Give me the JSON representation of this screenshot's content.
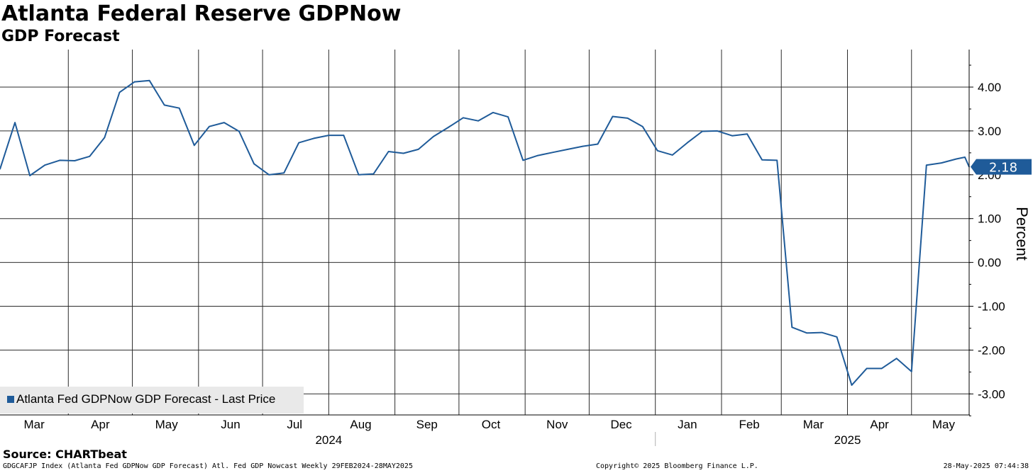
{
  "header": {
    "title": "Atlanta Federal Reserve GDPNow",
    "subtitle": "GDP Forecast"
  },
  "legend": {
    "label": "Atlanta Fed GDPNow GDP Forecast - Last Price"
  },
  "last_price_tag": "2.18",
  "footer": {
    "source": "Source: CHARTbeat",
    "index_info": "GDGCAFJP Index (Atlanta Fed GDPNow GDP Forecast) Atl. Fed GDP Nowcast  Weekly 29FEB2024-28MAY2025",
    "copyright": "Copyright© 2025 Bloomberg Finance L.P.",
    "timestamp": "28-May-2025 07:44:38"
  },
  "chart_data": {
    "type": "line",
    "title": "Atlanta Federal Reserve GDPNow",
    "subtitle": "GDP Forecast",
    "ylabel": "Percent",
    "ylim": [
      -3.5,
      4.8
    ],
    "yticks": [
      "4.00",
      "3.00",
      "2.00",
      "1.00",
      "0.00",
      "-1.00",
      "-2.00",
      "-3.00"
    ],
    "ytick_values": [
      4,
      3,
      2,
      1,
      0,
      -1,
      -2,
      -3
    ],
    "xlim": [
      "2024-02-29",
      "2025-05-28"
    ],
    "grid": true,
    "legend_position": "bottom-left",
    "month_labels": [
      {
        "label": "Mar",
        "date": "2024-03-16"
      },
      {
        "label": "Apr",
        "date": "2024-04-16"
      },
      {
        "label": "May",
        "date": "2024-05-17"
      },
      {
        "label": "Jun",
        "date": "2024-06-16"
      },
      {
        "label": "Jul",
        "date": "2024-07-16"
      },
      {
        "label": "Aug",
        "date": "2024-08-16"
      },
      {
        "label": "Sep",
        "date": "2024-09-16"
      },
      {
        "label": "Oct",
        "date": "2024-10-16"
      },
      {
        "label": "Nov",
        "date": "2024-11-16"
      },
      {
        "label": "Dec",
        "date": "2024-12-16"
      },
      {
        "label": "Jan",
        "date": "2025-01-16"
      },
      {
        "label": "Feb",
        "date": "2025-02-14"
      },
      {
        "label": "Mar",
        "date": "2025-03-16"
      },
      {
        "label": "Apr",
        "date": "2025-04-16"
      },
      {
        "label": "May",
        "date": "2025-05-16"
      }
    ],
    "month_boundaries": [
      "2024-04-01",
      "2024-05-01",
      "2024-06-01",
      "2024-07-01",
      "2024-08-01",
      "2024-09-01",
      "2024-10-01",
      "2024-11-01",
      "2024-12-01",
      "2025-01-01",
      "2025-02-01",
      "2025-03-01",
      "2025-04-01",
      "2025-05-01"
    ],
    "year_labels": [
      {
        "label": "2024",
        "date": "2024-08-01"
      },
      {
        "label": "2025",
        "date": "2025-04-01"
      }
    ],
    "year_divider": "2025-01-01",
    "series": [
      {
        "name": "Atlanta Fed GDPNow GDP Forecast - Last Price",
        "color": "#1f5b99",
        "points": [
          [
            "2024-02-29",
            2.13
          ],
          [
            "2024-03-07",
            3.19
          ],
          [
            "2024-03-14",
            1.98
          ],
          [
            "2024-03-21",
            2.22
          ],
          [
            "2024-03-28",
            2.33
          ],
          [
            "2024-04-04",
            2.32
          ],
          [
            "2024-04-11",
            2.42
          ],
          [
            "2024-04-18",
            2.85
          ],
          [
            "2024-04-25",
            3.88
          ],
          [
            "2024-05-02",
            4.12
          ],
          [
            "2024-05-09",
            4.15
          ],
          [
            "2024-05-16",
            3.59
          ],
          [
            "2024-05-23",
            3.52
          ],
          [
            "2024-05-30",
            2.67
          ],
          [
            "2024-06-06",
            3.1
          ],
          [
            "2024-06-13",
            3.19
          ],
          [
            "2024-06-20",
            2.99
          ],
          [
            "2024-06-27",
            2.25
          ],
          [
            "2024-07-04",
            2.0
          ],
          [
            "2024-07-11",
            2.04
          ],
          [
            "2024-07-18",
            2.73
          ],
          [
            "2024-07-25",
            2.83
          ],
          [
            "2024-08-01",
            2.9
          ],
          [
            "2024-08-08",
            2.9
          ],
          [
            "2024-08-15",
            2.0
          ],
          [
            "2024-08-22",
            2.02
          ],
          [
            "2024-08-29",
            2.53
          ],
          [
            "2024-09-05",
            2.49
          ],
          [
            "2024-09-12",
            2.58
          ],
          [
            "2024-09-19",
            2.87
          ],
          [
            "2024-09-26",
            3.08
          ],
          [
            "2024-10-03",
            3.3
          ],
          [
            "2024-10-10",
            3.23
          ],
          [
            "2024-10-17",
            3.42
          ],
          [
            "2024-10-24",
            3.32
          ],
          [
            "2024-10-31",
            2.33
          ],
          [
            "2024-11-07",
            2.44
          ],
          [
            "2024-11-14",
            2.51
          ],
          [
            "2024-11-21",
            2.58
          ],
          [
            "2024-11-28",
            2.65
          ],
          [
            "2024-12-05",
            2.7
          ],
          [
            "2024-12-12",
            3.33
          ],
          [
            "2024-12-19",
            3.29
          ],
          [
            "2024-12-26",
            3.1
          ],
          [
            "2025-01-02",
            2.55
          ],
          [
            "2025-01-09",
            2.45
          ],
          [
            "2025-01-16",
            2.73
          ],
          [
            "2025-01-23",
            2.99
          ],
          [
            "2025-01-30",
            3.0
          ],
          [
            "2025-02-06",
            2.89
          ],
          [
            "2025-02-13",
            2.93
          ],
          [
            "2025-02-20",
            2.34
          ],
          [
            "2025-02-27",
            2.33
          ],
          [
            "2025-03-06",
            -1.48
          ],
          [
            "2025-03-13",
            -1.61
          ],
          [
            "2025-03-20",
            -1.6
          ],
          [
            "2025-03-27",
            -1.7
          ],
          [
            "2025-04-03",
            -2.8
          ],
          [
            "2025-04-10",
            -2.42
          ],
          [
            "2025-04-17",
            -2.42
          ],
          [
            "2025-04-24",
            -2.19
          ],
          [
            "2025-05-01",
            -2.49
          ],
          [
            "2025-05-08",
            2.22
          ],
          [
            "2025-05-15",
            2.27
          ],
          [
            "2025-05-22",
            2.36
          ],
          [
            "2025-05-26",
            2.4
          ],
          [
            "2025-05-28",
            2.18
          ]
        ]
      }
    ]
  }
}
